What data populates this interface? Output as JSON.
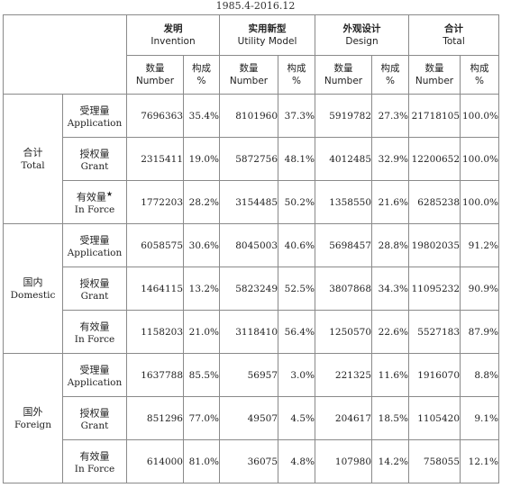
{
  "caption": "1985.4-2016.12",
  "header": {
    "invention": {
      "cn": "发明",
      "en": "Invention"
    },
    "utility": {
      "cn": "实用新型",
      "en": "Utility Model"
    },
    "design": {
      "cn": "外观设计",
      "en": "Design"
    },
    "total": {
      "cn": "合计",
      "en": "Total"
    },
    "number": {
      "cn": "数量",
      "en": "Number"
    },
    "ratio": {
      "cn": "构成",
      "en": "%"
    }
  },
  "groups": [
    {
      "cn": "合计",
      "en": "Total",
      "rows": [
        {
          "cn": "受理量",
          "en": "Application",
          "star": "",
          "cells": [
            "7696363",
            "35.4%",
            "8101960",
            "37.3%",
            "5919782",
            "27.3%",
            "21718105",
            "100.0%"
          ]
        },
        {
          "cn": "授权量",
          "en": "Grant",
          "star": "",
          "cells": [
            "2315411",
            "19.0%",
            "5872756",
            "48.1%",
            "4012485",
            "32.9%",
            "12200652",
            "100.0%"
          ]
        },
        {
          "cn": "有效量",
          "en": "In Force",
          "star": "★",
          "cells": [
            "1772203",
            "28.2%",
            "3154485",
            "50.2%",
            "1358550",
            "21.6%",
            "6285238",
            "100.0%"
          ]
        }
      ]
    },
    {
      "cn": "国内",
      "en": "Domestic",
      "rows": [
        {
          "cn": "受理量",
          "en": "Application",
          "star": "",
          "cells": [
            "6058575",
            "30.6%",
            "8045003",
            "40.6%",
            "5698457",
            "28.8%",
            "19802035",
            "91.2%"
          ]
        },
        {
          "cn": "授权量",
          "en": "Grant",
          "star": "",
          "cells": [
            "1464115",
            "13.2%",
            "5823249",
            "52.5%",
            "3807868",
            "34.3%",
            "11095232",
            "90.9%"
          ]
        },
        {
          "cn": "有效量",
          "en": "In Force",
          "star": "",
          "cells": [
            "1158203",
            "21.0%",
            "3118410",
            "56.4%",
            "1250570",
            "22.6%",
            "5527183",
            "87.9%"
          ]
        }
      ]
    },
    {
      "cn": "国外",
      "en": "Foreign",
      "rows": [
        {
          "cn": "受理量",
          "en": "Application",
          "star": "",
          "cells": [
            "1637788",
            "85.5%",
            "56957",
            "3.0%",
            "221325",
            "11.6%",
            "1916070",
            "8.8%"
          ]
        },
        {
          "cn": "授权量",
          "en": "Grant",
          "star": "",
          "cells": [
            "851296",
            "77.0%",
            "49507",
            "4.5%",
            "204617",
            "18.5%",
            "1105420",
            "9.1%"
          ]
        },
        {
          "cn": "有效量",
          "en": "In Force",
          "star": "",
          "cells": [
            "614000",
            "81.0%",
            "36075",
            "4.8%",
            "107980",
            "14.2%",
            "758055",
            "12.1%"
          ]
        }
      ]
    }
  ]
}
